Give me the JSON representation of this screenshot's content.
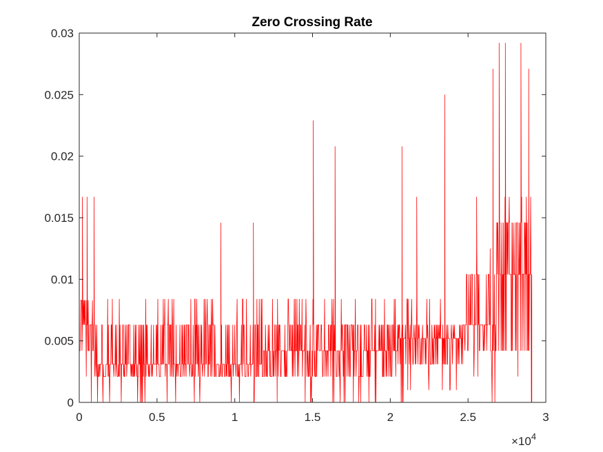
{
  "chart_data": {
    "type": "line",
    "title": "Zero Crossing Rate",
    "xlabel": "",
    "ylabel": "",
    "xlim": [
      0,
      30000
    ],
    "ylim": [
      0,
      0.03
    ],
    "x_ticks": [
      0,
      5000,
      10000,
      15000,
      20000,
      25000,
      30000
    ],
    "x_tick_labels": [
      "0",
      "0.5",
      "1",
      "1.5",
      "2",
      "2.5",
      "3"
    ],
    "x_exponent_label": {
      "base": "×10",
      "power": "4"
    },
    "y_ticks": [
      0,
      0.005,
      0.01,
      0.015,
      0.02,
      0.025,
      0.03
    ],
    "y_tick_labels": [
      "0",
      "0.005",
      "0.01",
      "0.015",
      "0.02",
      "0.025",
      "0.03"
    ],
    "grid": false,
    "series": [
      {
        "color": "#ff0000",
        "n_samples": 29100,
        "segments": [
          {
            "x_start": 0,
            "x_end": 1000,
            "low": 0.0042,
            "high": 0.0083,
            "mode": 0.0063
          },
          {
            "x_start": 1000,
            "x_end": 11800,
            "low": 0.0021,
            "high": 0.0063,
            "mode": 0.0031
          },
          {
            "x_start": 11800,
            "x_end": 20500,
            "low": 0.0021,
            "high": 0.0063,
            "mode": 0.0042
          },
          {
            "x_start": 20500,
            "x_end": 24800,
            "low": 0.0031,
            "high": 0.0063,
            "mode": 0.0052
          },
          {
            "x_start": 24800,
            "x_end": 26800,
            "low": 0.0042,
            "high": 0.0104,
            "mode": 0.0063
          },
          {
            "x_start": 26800,
            "x_end": 29050,
            "low": 0.0042,
            "high": 0.0146,
            "mode": 0.0104
          }
        ],
        "peaks": [
          {
            "x": 200,
            "y": 0.0167
          },
          {
            "x": 500,
            "y": 0.0167
          },
          {
            "x": 950,
            "y": 0.0167
          },
          {
            "x": 9100,
            "y": 0.0146
          },
          {
            "x": 11200,
            "y": 0.0146
          },
          {
            "x": 15050,
            "y": 0.0229
          },
          {
            "x": 16450,
            "y": 0.0208
          },
          {
            "x": 20750,
            "y": 0.0208
          },
          {
            "x": 21700,
            "y": 0.0167
          },
          {
            "x": 23500,
            "y": 0.025
          },
          {
            "x": 25550,
            "y": 0.0167
          },
          {
            "x": 26600,
            "y": 0.0271
          },
          {
            "x": 27000,
            "y": 0.0292
          },
          {
            "x": 27400,
            "y": 0.0292
          },
          {
            "x": 28400,
            "y": 0.0292
          },
          {
            "x": 28900,
            "y": 0.0271
          }
        ]
      }
    ]
  }
}
